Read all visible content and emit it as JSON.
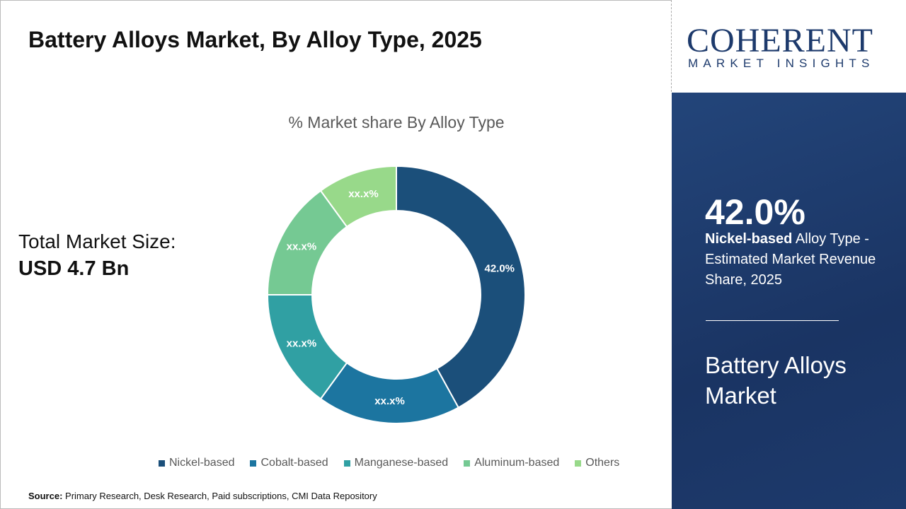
{
  "title": "Battery Alloys Market, By Alloy Type, 2025",
  "total_market": {
    "label": "Total Market Size:",
    "value": "USD 4.7 Bn"
  },
  "source": {
    "label": "Source:",
    "text": "Primary Research, Desk Research, Paid subscriptions, CMI Data Repository"
  },
  "logo": {
    "main": "COHERENT",
    "sub": "MARKET INSIGHTS"
  },
  "panel": {
    "highlight_value": "42.0%",
    "highlight_segment": "Nickel-based",
    "highlight_text": " Alloy Type - Estimated Market Revenue Share, 2025",
    "market_name": "Battery Alloys Market"
  },
  "chart_data": {
    "type": "pie",
    "donut": true,
    "title": "% Market share By Alloy Type",
    "categories": [
      "Nickel-based",
      "Cobalt-based",
      "Manganese-based",
      "Aluminum-based",
      "Others"
    ],
    "values": [
      42.0,
      18,
      15,
      15,
      10
    ],
    "data_labels": [
      "42.0%",
      "xx.x%",
      "xx.x%",
      "xx.x%",
      "xx.x%"
    ],
    "colors": [
      "#1b4f7a",
      "#1c75a0",
      "#30a0a3",
      "#75c993",
      "#98d98a"
    ],
    "legend_position": "bottom"
  }
}
